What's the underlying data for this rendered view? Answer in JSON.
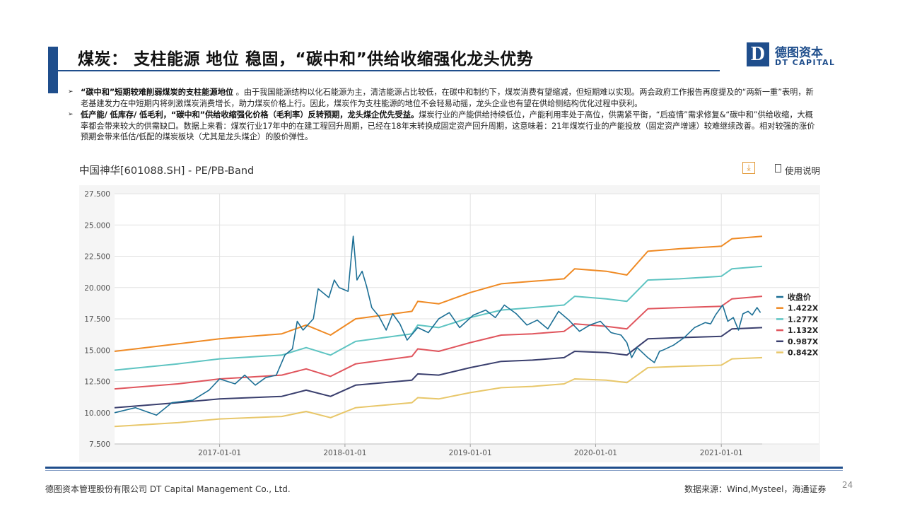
{
  "title": "煤炭： 支柱能源 地位 稳固，“碳中和”供给收缩强化龙头优势",
  "logo": {
    "cn": "德图资本",
    "en": "DT CAPITAL",
    "mark": "D"
  },
  "bullets": [
    {
      "bold": "“碳中和”短期较难削弱煤炭的支柱能源地位",
      "text": " 。由于我国能源结构以化石能源为主，清洁能源占比较低，在碳中和制约下，煤炭消费有望缩减，但短期难以实现。两会政府工作报告再度提及的“两新一重”表明，新老基建发力在中短期内将刺激煤炭消费增长，助力煤炭价格上行。因此，煤炭作为支柱能源的地位不会轻易动摇，龙头企业也有望在供给侧结构优化过程中获利。"
    },
    {
      "bold": "低产能/ 低库存/ 低毛利，“碳中和”供给收缩强化价格（毛利率）反转预期，龙头煤企优先受益。",
      "text": "煤炭行业的产能供给持续低位，产能利用率处于高位，供需紧平衡，“后疫情”需求修复&“碳中和”供给收缩，大概率都会带来较大的供需缺口。数据上来看：煤炭行业17年中的在建工程回升周期，已经在18年末转换成固定资产回升周期，这意味着：21年煤炭行业的产能投放（固定资产增速）较难继续改善。相对较强的涨价预期会带来低估/低配的煤炭板块（尤其是龙头煤企）的股价弹性。"
    }
  ],
  "chart_header": {
    "title": "中国神华[601088.SH] - PE/PB-Band",
    "download_icon": "download-icon",
    "doc_label": "使用说明"
  },
  "chart_data": {
    "type": "line",
    "title": "中国神华[601088.SH] - PE/PB-Band",
    "ylim": [
      7.5,
      27.5
    ],
    "y_ticks": [
      "7.500",
      "10.000",
      "12.500",
      "15.000",
      "17.500",
      "20.000",
      "22.500",
      "25.000",
      "27.500"
    ],
    "x_range": [
      "2016-03-01",
      "2021-04-30"
    ],
    "x_ticks": [
      "2017-01-01",
      "2018-01-01",
      "2019-01-01",
      "2020-01-01",
      "2021-01-01"
    ],
    "grid": true,
    "legend_position": "right",
    "series": [
      {
        "name": "收盘价",
        "color": "#1c6f95",
        "points": [
          [
            "2016-03-01",
            10.0
          ],
          [
            "2016-05-01",
            10.4
          ],
          [
            "2016-07-01",
            9.8
          ],
          [
            "2016-08-15",
            10.8
          ],
          [
            "2016-10-15",
            11.0
          ],
          [
            "2016-12-01",
            11.8
          ],
          [
            "2017-01-01",
            12.7
          ],
          [
            "2017-02-15",
            12.3
          ],
          [
            "2017-03-15",
            13.0
          ],
          [
            "2017-04-15",
            12.2
          ],
          [
            "2017-05-15",
            12.8
          ],
          [
            "2017-06-15",
            13.0
          ],
          [
            "2017-07-10",
            14.6
          ],
          [
            "2017-08-01",
            15.1
          ],
          [
            "2017-08-15",
            17.3
          ],
          [
            "2017-09-01",
            16.6
          ],
          [
            "2017-10-01",
            17.5
          ],
          [
            "2017-10-15",
            19.9
          ],
          [
            "2017-11-15",
            19.2
          ],
          [
            "2017-12-01",
            20.6
          ],
          [
            "2017-12-15",
            20.0
          ],
          [
            "2018-01-10",
            19.7
          ],
          [
            "2018-01-25",
            24.1
          ],
          [
            "2018-02-05",
            20.6
          ],
          [
            "2018-02-20",
            21.3
          ],
          [
            "2018-03-05",
            20.1
          ],
          [
            "2018-03-20",
            18.4
          ],
          [
            "2018-04-10",
            17.7
          ],
          [
            "2018-05-01",
            16.6
          ],
          [
            "2018-05-20",
            17.9
          ],
          [
            "2018-06-10",
            17.1
          ],
          [
            "2018-07-01",
            15.8
          ],
          [
            "2018-08-01",
            16.8
          ],
          [
            "2018-09-01",
            16.4
          ],
          [
            "2018-10-01",
            17.5
          ],
          [
            "2018-11-01",
            18.0
          ],
          [
            "2018-12-01",
            16.8
          ],
          [
            "2019-01-10",
            17.8
          ],
          [
            "2019-02-15",
            18.2
          ],
          [
            "2019-03-15",
            17.6
          ],
          [
            "2019-04-10",
            18.6
          ],
          [
            "2019-05-15",
            17.9
          ],
          [
            "2019-06-15",
            17.0
          ],
          [
            "2019-07-15",
            17.4
          ],
          [
            "2019-08-15",
            16.7
          ],
          [
            "2019-09-15",
            18.1
          ],
          [
            "2019-10-15",
            17.4
          ],
          [
            "2019-11-15",
            16.5
          ],
          [
            "2019-12-15",
            17.0
          ],
          [
            "2020-01-15",
            17.3
          ],
          [
            "2020-02-15",
            16.4
          ],
          [
            "2020-03-15",
            16.2
          ],
          [
            "2020-04-01",
            15.6
          ],
          [
            "2020-04-15",
            14.4
          ],
          [
            "2020-05-01",
            15.2
          ],
          [
            "2020-06-01",
            14.4
          ],
          [
            "2020-06-20",
            14.0
          ],
          [
            "2020-07-05",
            14.9
          ],
          [
            "2020-07-15",
            15.0
          ],
          [
            "2020-08-15",
            15.4
          ],
          [
            "2020-09-15",
            16.0
          ],
          [
            "2020-10-15",
            16.8
          ],
          [
            "2020-11-15",
            17.2
          ],
          [
            "2020-12-01",
            17.1
          ],
          [
            "2020-12-15",
            17.8
          ],
          [
            "2021-01-05",
            18.6
          ],
          [
            "2021-01-20",
            17.3
          ],
          [
            "2021-02-05",
            17.6
          ],
          [
            "2021-02-20",
            16.6
          ],
          [
            "2021-03-05",
            17.9
          ],
          [
            "2021-03-20",
            18.1
          ],
          [
            "2021-04-01",
            17.8
          ],
          [
            "2021-04-15",
            18.4
          ],
          [
            "2021-04-25",
            18.0
          ]
        ]
      },
      {
        "name": "1.422X",
        "color": "#ef8a24",
        "points": [
          [
            "2016-03-01",
            14.9
          ],
          [
            "2016-09-01",
            15.5
          ],
          [
            "2017-01-01",
            15.9
          ],
          [
            "2017-07-01",
            16.3
          ],
          [
            "2017-09-10",
            17.0
          ],
          [
            "2017-11-20",
            16.2
          ],
          [
            "2018-02-01",
            17.5
          ],
          [
            "2018-07-15",
            18.1
          ],
          [
            "2018-08-01",
            18.9
          ],
          [
            "2018-10-01",
            18.7
          ],
          [
            "2019-01-01",
            19.6
          ],
          [
            "2019-04-01",
            20.3
          ],
          [
            "2019-07-01",
            20.5
          ],
          [
            "2019-10-01",
            20.7
          ],
          [
            "2019-11-01",
            21.5
          ],
          [
            "2020-02-01",
            21.3
          ],
          [
            "2020-04-01",
            21.0
          ],
          [
            "2020-06-01",
            22.9
          ],
          [
            "2020-09-01",
            23.1
          ],
          [
            "2021-01-01",
            23.3
          ],
          [
            "2021-02-01",
            23.9
          ],
          [
            "2021-04-30",
            24.1
          ]
        ]
      },
      {
        "name": "1.277X",
        "color": "#5ec4c2",
        "points": [
          [
            "2016-03-01",
            13.4
          ],
          [
            "2016-09-01",
            13.9
          ],
          [
            "2017-01-01",
            14.3
          ],
          [
            "2017-07-01",
            14.6
          ],
          [
            "2017-09-10",
            15.2
          ],
          [
            "2017-11-20",
            14.6
          ],
          [
            "2018-02-01",
            15.7
          ],
          [
            "2018-07-15",
            16.3
          ],
          [
            "2018-08-01",
            17.0
          ],
          [
            "2018-10-01",
            16.8
          ],
          [
            "2019-01-01",
            17.6
          ],
          [
            "2019-04-01",
            18.2
          ],
          [
            "2019-07-01",
            18.4
          ],
          [
            "2019-10-01",
            18.6
          ],
          [
            "2019-11-01",
            19.3
          ],
          [
            "2020-02-01",
            19.1
          ],
          [
            "2020-04-01",
            18.9
          ],
          [
            "2020-06-01",
            20.6
          ],
          [
            "2020-09-01",
            20.7
          ],
          [
            "2021-01-01",
            20.9
          ],
          [
            "2021-02-01",
            21.5
          ],
          [
            "2021-04-30",
            21.7
          ]
        ]
      },
      {
        "name": "1.132X",
        "color": "#e0555d",
        "points": [
          [
            "2016-03-01",
            11.9
          ],
          [
            "2016-09-01",
            12.3
          ],
          [
            "2017-01-01",
            12.7
          ],
          [
            "2017-07-01",
            13.0
          ],
          [
            "2017-09-10",
            13.5
          ],
          [
            "2017-11-20",
            12.9
          ],
          [
            "2018-02-01",
            13.9
          ],
          [
            "2018-07-15",
            14.5
          ],
          [
            "2018-08-01",
            15.1
          ],
          [
            "2018-10-01",
            14.9
          ],
          [
            "2019-01-01",
            15.6
          ],
          [
            "2019-04-01",
            16.2
          ],
          [
            "2019-07-01",
            16.3
          ],
          [
            "2019-10-01",
            16.5
          ],
          [
            "2019-11-01",
            17.1
          ],
          [
            "2020-02-01",
            16.9
          ],
          [
            "2020-04-01",
            16.7
          ],
          [
            "2020-06-01",
            18.3
          ],
          [
            "2020-09-01",
            18.4
          ],
          [
            "2021-01-01",
            18.5
          ],
          [
            "2021-02-01",
            19.1
          ],
          [
            "2021-04-30",
            19.3
          ]
        ]
      },
      {
        "name": "0.987X",
        "color": "#3a3f6e",
        "points": [
          [
            "2016-03-01",
            10.4
          ],
          [
            "2016-09-01",
            10.8
          ],
          [
            "2017-01-01",
            11.1
          ],
          [
            "2017-07-01",
            11.3
          ],
          [
            "2017-09-10",
            11.8
          ],
          [
            "2017-11-20",
            11.3
          ],
          [
            "2018-02-01",
            12.2
          ],
          [
            "2018-07-15",
            12.6
          ],
          [
            "2018-08-01",
            13.1
          ],
          [
            "2018-10-01",
            13.0
          ],
          [
            "2019-01-01",
            13.6
          ],
          [
            "2019-04-01",
            14.1
          ],
          [
            "2019-07-01",
            14.2
          ],
          [
            "2019-10-01",
            14.4
          ],
          [
            "2019-11-01",
            14.9
          ],
          [
            "2020-02-01",
            14.8
          ],
          [
            "2020-04-01",
            14.6
          ],
          [
            "2020-06-01",
            15.9
          ],
          [
            "2020-09-01",
            16.0
          ],
          [
            "2021-01-01",
            16.1
          ],
          [
            "2021-02-01",
            16.7
          ],
          [
            "2021-04-30",
            16.8
          ]
        ]
      },
      {
        "name": "0.842X",
        "color": "#e8c76a",
        "points": [
          [
            "2016-03-01",
            8.9
          ],
          [
            "2016-09-01",
            9.2
          ],
          [
            "2017-01-01",
            9.5
          ],
          [
            "2017-07-01",
            9.7
          ],
          [
            "2017-09-10",
            10.1
          ],
          [
            "2017-11-20",
            9.6
          ],
          [
            "2018-02-01",
            10.4
          ],
          [
            "2018-07-15",
            10.8
          ],
          [
            "2018-08-01",
            11.2
          ],
          [
            "2018-10-01",
            11.1
          ],
          [
            "2019-01-01",
            11.6
          ],
          [
            "2019-04-01",
            12.0
          ],
          [
            "2019-07-01",
            12.1
          ],
          [
            "2019-10-01",
            12.3
          ],
          [
            "2019-11-01",
            12.7
          ],
          [
            "2020-02-01",
            12.6
          ],
          [
            "2020-04-01",
            12.4
          ],
          [
            "2020-06-01",
            13.6
          ],
          [
            "2020-09-01",
            13.7
          ],
          [
            "2021-01-01",
            13.8
          ],
          [
            "2021-02-01",
            14.3
          ],
          [
            "2021-04-30",
            14.4
          ]
        ]
      }
    ]
  },
  "footer": {
    "company": "德图资本管理股份有限公司  DT Capital Management  Co., Ltd.",
    "source": "数据来源：Wind,Mysteel，海通证券",
    "page": "24"
  }
}
